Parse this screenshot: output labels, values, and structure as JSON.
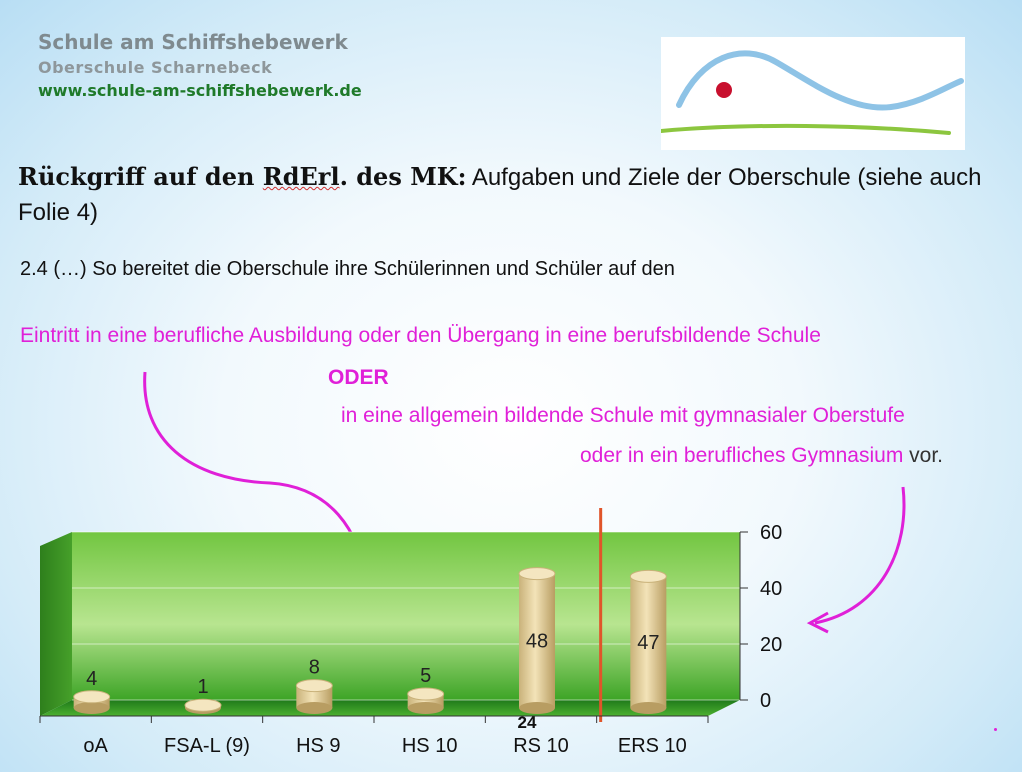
{
  "header": {
    "school_name": "Schule am Schiffshebewerk",
    "school_sub": "Oberschule  Scharnebeck",
    "website": "www.schule-am-schiffshebewerk.de"
  },
  "title": {
    "bold_part1": "Rückgriff auf den ",
    "bold_underlined": "RdErl",
    "bold_part2": ". des MK:",
    "normal_part": " Aufgaben und Ziele der Oberschule (siehe auch Folie 4)"
  },
  "paragraph": "2.4 (…) So bereitet die Oberschule ihre Schülerinnen und Schüler auf den",
  "magenta": {
    "line1": "Eintritt in eine berufliche Ausbildung oder den Übergang in eine berufsbildende Schule",
    "oder": "ODER",
    "line2": "in eine allgemein bildende Schule mit gymnasialer Oberstufe",
    "line3": "oder in ein berufliches Gymnasium",
    "line3_end": " vor."
  },
  "colors": {
    "magenta": "#e020d8",
    "chart_wall": "#4cb030",
    "cylinder": "#e8d3a0",
    "divider": "#e0552a",
    "logo_wave": "#8ec3e6",
    "logo_dot": "#c8102e",
    "logo_line": "#8cc63f"
  },
  "chart_data": {
    "type": "bar",
    "categories": [
      "oA",
      "FSA-L (9)",
      "HS 9",
      "HS 10",
      "RS 10",
      "ERS 10"
    ],
    "values": [
      4,
      1,
      8,
      5,
      48,
      47
    ],
    "ylim": [
      0,
      60
    ],
    "yticks": [
      0,
      20,
      40,
      60
    ],
    "ytick_labels": [
      "0",
      "20",
      "40",
      "60"
    ],
    "data_labels": [
      "4",
      "1",
      "8",
      "5",
      "48",
      "47"
    ],
    "extra_label": "24",
    "axis_side": "right",
    "grid": true
  }
}
